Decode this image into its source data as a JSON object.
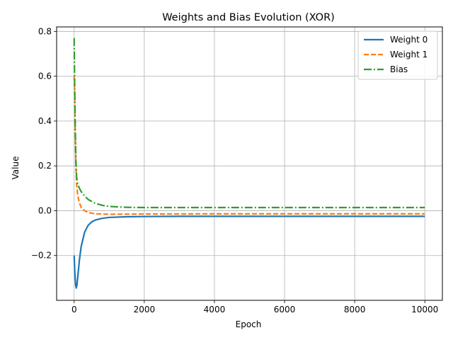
{
  "chart_data": {
    "type": "line",
    "title": "Weights and Bias Evolution (XOR)",
    "xlabel": "Epoch",
    "ylabel": "Value",
    "xlim": [
      -500,
      10500
    ],
    "ylim": [
      -0.4,
      0.82
    ],
    "xticks": [
      0,
      2000,
      4000,
      6000,
      8000,
      10000
    ],
    "xtick_labels": [
      "0",
      "2000",
      "4000",
      "6000",
      "8000",
      "10000"
    ],
    "yticks": [
      -0.2,
      0.0,
      0.2,
      0.4,
      0.6,
      0.8
    ],
    "ytick_labels": [
      "−0.2",
      "0.0",
      "0.2",
      "0.4",
      "0.6",
      "0.8"
    ],
    "grid": true,
    "legend_position": "top-right",
    "series": [
      {
        "name": "Weight 0",
        "color": "#1f77b4",
        "style": "solid",
        "x": [
          0,
          20,
          40,
          60,
          80,
          100,
          150,
          200,
          300,
          400,
          500,
          600,
          800,
          1000,
          1500,
          2000,
          3000,
          4000,
          6000,
          8000,
          10000
        ],
        "y": [
          -0.2,
          -0.28,
          -0.33,
          -0.345,
          -0.33,
          -0.3,
          -0.22,
          -0.16,
          -0.095,
          -0.065,
          -0.05,
          -0.042,
          -0.034,
          -0.03,
          -0.027,
          -0.026,
          -0.025,
          -0.025,
          -0.025,
          -0.025,
          -0.025
        ]
      },
      {
        "name": "Weight 1",
        "color": "#ff7f0e",
        "style": "dashed",
        "x": [
          0,
          10,
          20,
          30,
          50,
          70,
          100,
          150,
          200,
          300,
          400,
          600,
          1000,
          2000,
          4000,
          6000,
          8000,
          10000
        ],
        "y": [
          0.6,
          0.55,
          0.45,
          0.35,
          0.2,
          0.12,
          0.07,
          0.035,
          0.015,
          0.0,
          -0.008,
          -0.014,
          -0.016,
          -0.015,
          -0.014,
          -0.014,
          -0.014,
          -0.014
        ]
      },
      {
        "name": "Bias",
        "color": "#2ca02c",
        "style": "dashdot",
        "x": [
          0,
          10,
          20,
          30,
          50,
          70,
          100,
          150,
          200,
          300,
          400,
          600,
          800,
          1000,
          1500,
          2000,
          4000,
          6000,
          8000,
          10000
        ],
        "y": [
          0.77,
          0.62,
          0.5,
          0.38,
          0.22,
          0.15,
          0.12,
          0.1,
          0.085,
          0.065,
          0.05,
          0.033,
          0.024,
          0.019,
          0.015,
          0.014,
          0.014,
          0.014,
          0.014,
          0.014
        ]
      }
    ]
  }
}
